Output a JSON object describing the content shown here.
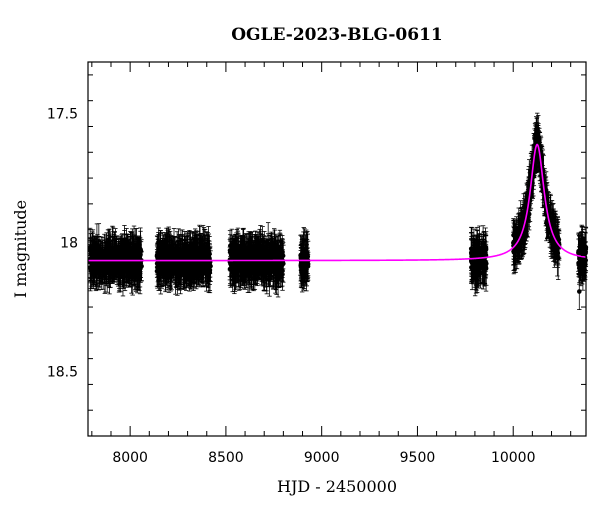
{
  "chart_data": {
    "type": "scatter",
    "title": "OGLE-2023-BLG-0611",
    "xlabel": "HJD - 2450000",
    "ylabel": "I magnitude",
    "xlim": [
      7780,
      10380
    ],
    "ylim": [
      18.75,
      17.3
    ],
    "y_inverted": true,
    "x_ticks": [
      8000,
      8500,
      9000,
      9500,
      10000
    ],
    "x_tick_labels": [
      "8000",
      "8500",
      "9000",
      "9500",
      "10000"
    ],
    "y_ticks": [
      17.5,
      18,
      18.5
    ],
    "y_tick_labels": [
      "17.5",
      "18",
      "18.5"
    ],
    "grid": false,
    "colors": {
      "data": "#000000",
      "model": "#ff00ff"
    },
    "series": [
      {
        "type": "scatter_errorbars",
        "observing_seasons": [
          {
            "x_range": [
              7790,
              8060
            ],
            "baseline_mag": 18.07
          },
          {
            "x_range": [
              8140,
              8420
            ],
            "baseline_mag": 18.07
          },
          {
            "x_range": [
              8520,
              8800
            ],
            "baseline_mag": 18.07
          },
          {
            "x_range": [
              8890,
              8930
            ],
            "baseline_mag": 18.07
          },
          {
            "x_range": [
              9780,
              9860
            ],
            "baseline_mag": 18.07
          },
          {
            "x_range": [
              10000,
              10240
            ],
            "baseline_mag": "model"
          },
          {
            "x_range": [
              10340,
              10380
            ],
            "baseline_mag": "model"
          }
        ],
        "typical_error_mag": 0.06,
        "extra_points": [
          {
            "x": 10345,
            "y": 18.19
          },
          {
            "x": 10358,
            "y": 18.09
          }
        ]
      },
      {
        "type": "line",
        "model": "microlensing_event",
        "baseline_mag": 18.07,
        "peak_x": 10125,
        "peak_mag": 17.62,
        "half_width_days": 60
      }
    ]
  }
}
